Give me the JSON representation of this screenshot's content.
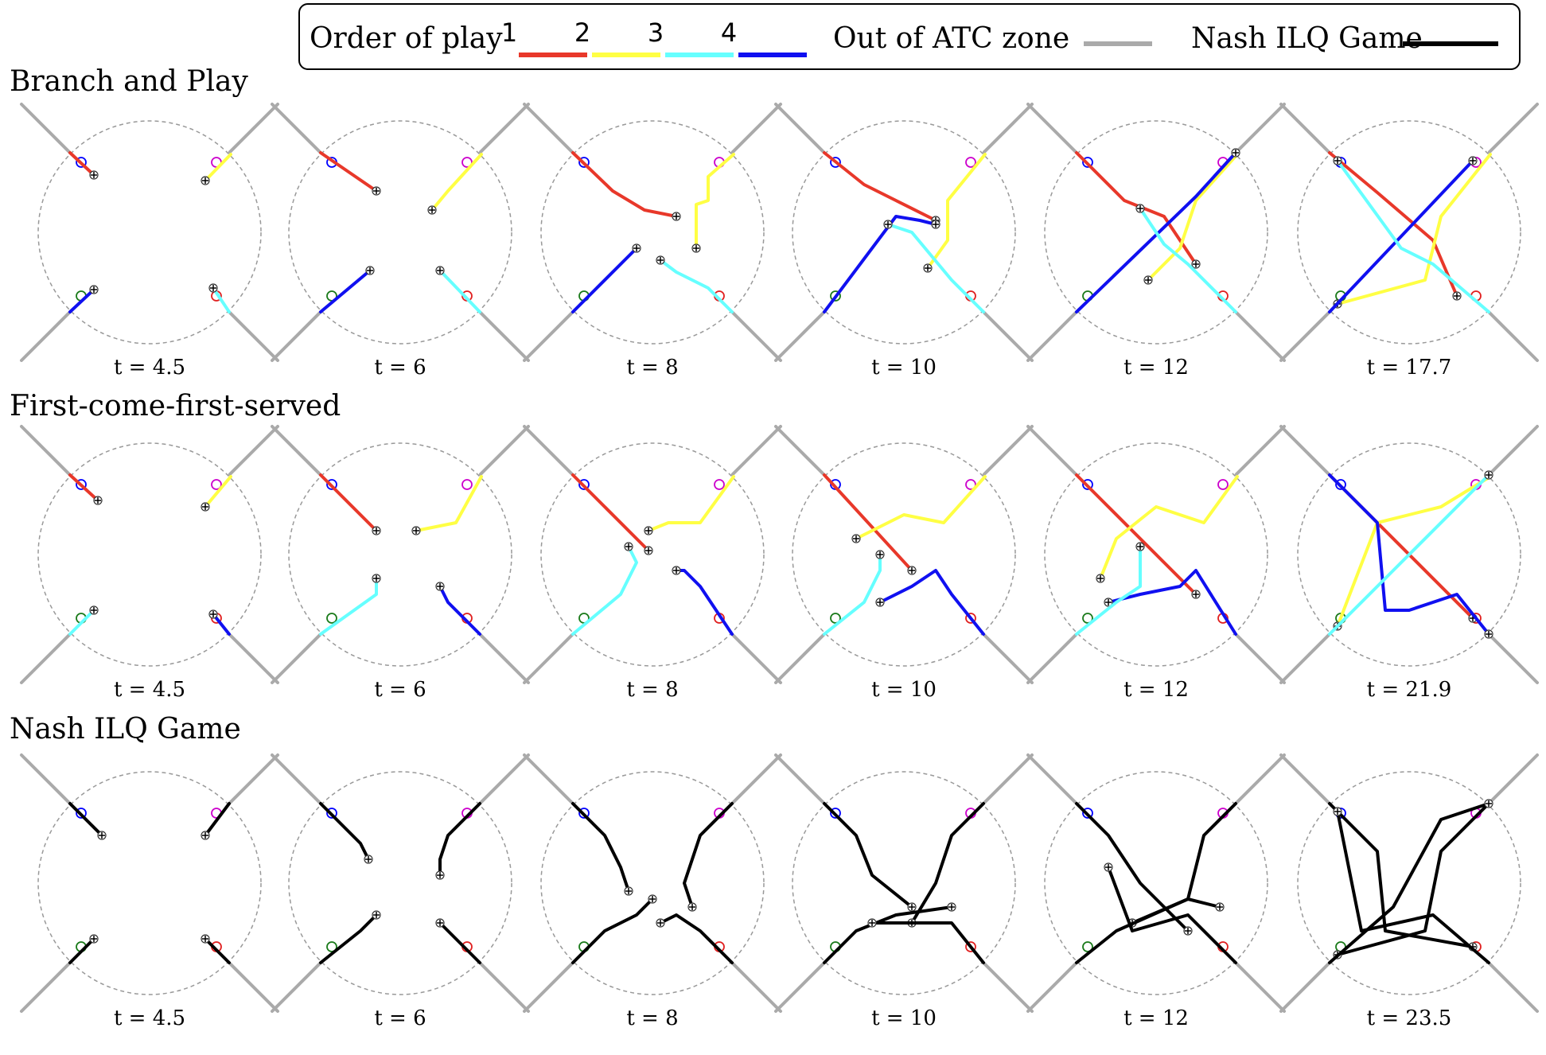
{
  "legend": {
    "order_label": "Order of play",
    "orders": [
      {
        "label": "1",
        "color": "#e8382a"
      },
      {
        "label": "2",
        "color": "#ffff44"
      },
      {
        "label": "3",
        "color": "#66ffff"
      },
      {
        "label": "4",
        "color": "#1010f0"
      }
    ],
    "out_label": "Out of ATC zone",
    "out_color": "#aaaaaa",
    "nash_label": "Nash ILQ Game",
    "nash_color": "#000000"
  },
  "rows": [
    {
      "title": "Branch and Play",
      "times": [
        "t = 4.5",
        "t = 6",
        "t = 8",
        "t = 10",
        "t = 12",
        "t = 17.7"
      ]
    },
    {
      "title": "First-come-first-served",
      "times": [
        "t = 4.5",
        "t = 6",
        "t = 8",
        "t = 10",
        "t = 12",
        "t = 21.9"
      ]
    },
    {
      "title": "Nash ILQ Game",
      "times": [
        "t = 4.5",
        "t = 6",
        "t = 8",
        "t = 10",
        "t = 12",
        "t = 23.5"
      ]
    }
  ],
  "target_colors": {
    "top_left": "#0000ff",
    "top_right": "#cc00cc",
    "bottom_left": "#1a7a1a",
    "bottom_right": "#e02020"
  }
}
